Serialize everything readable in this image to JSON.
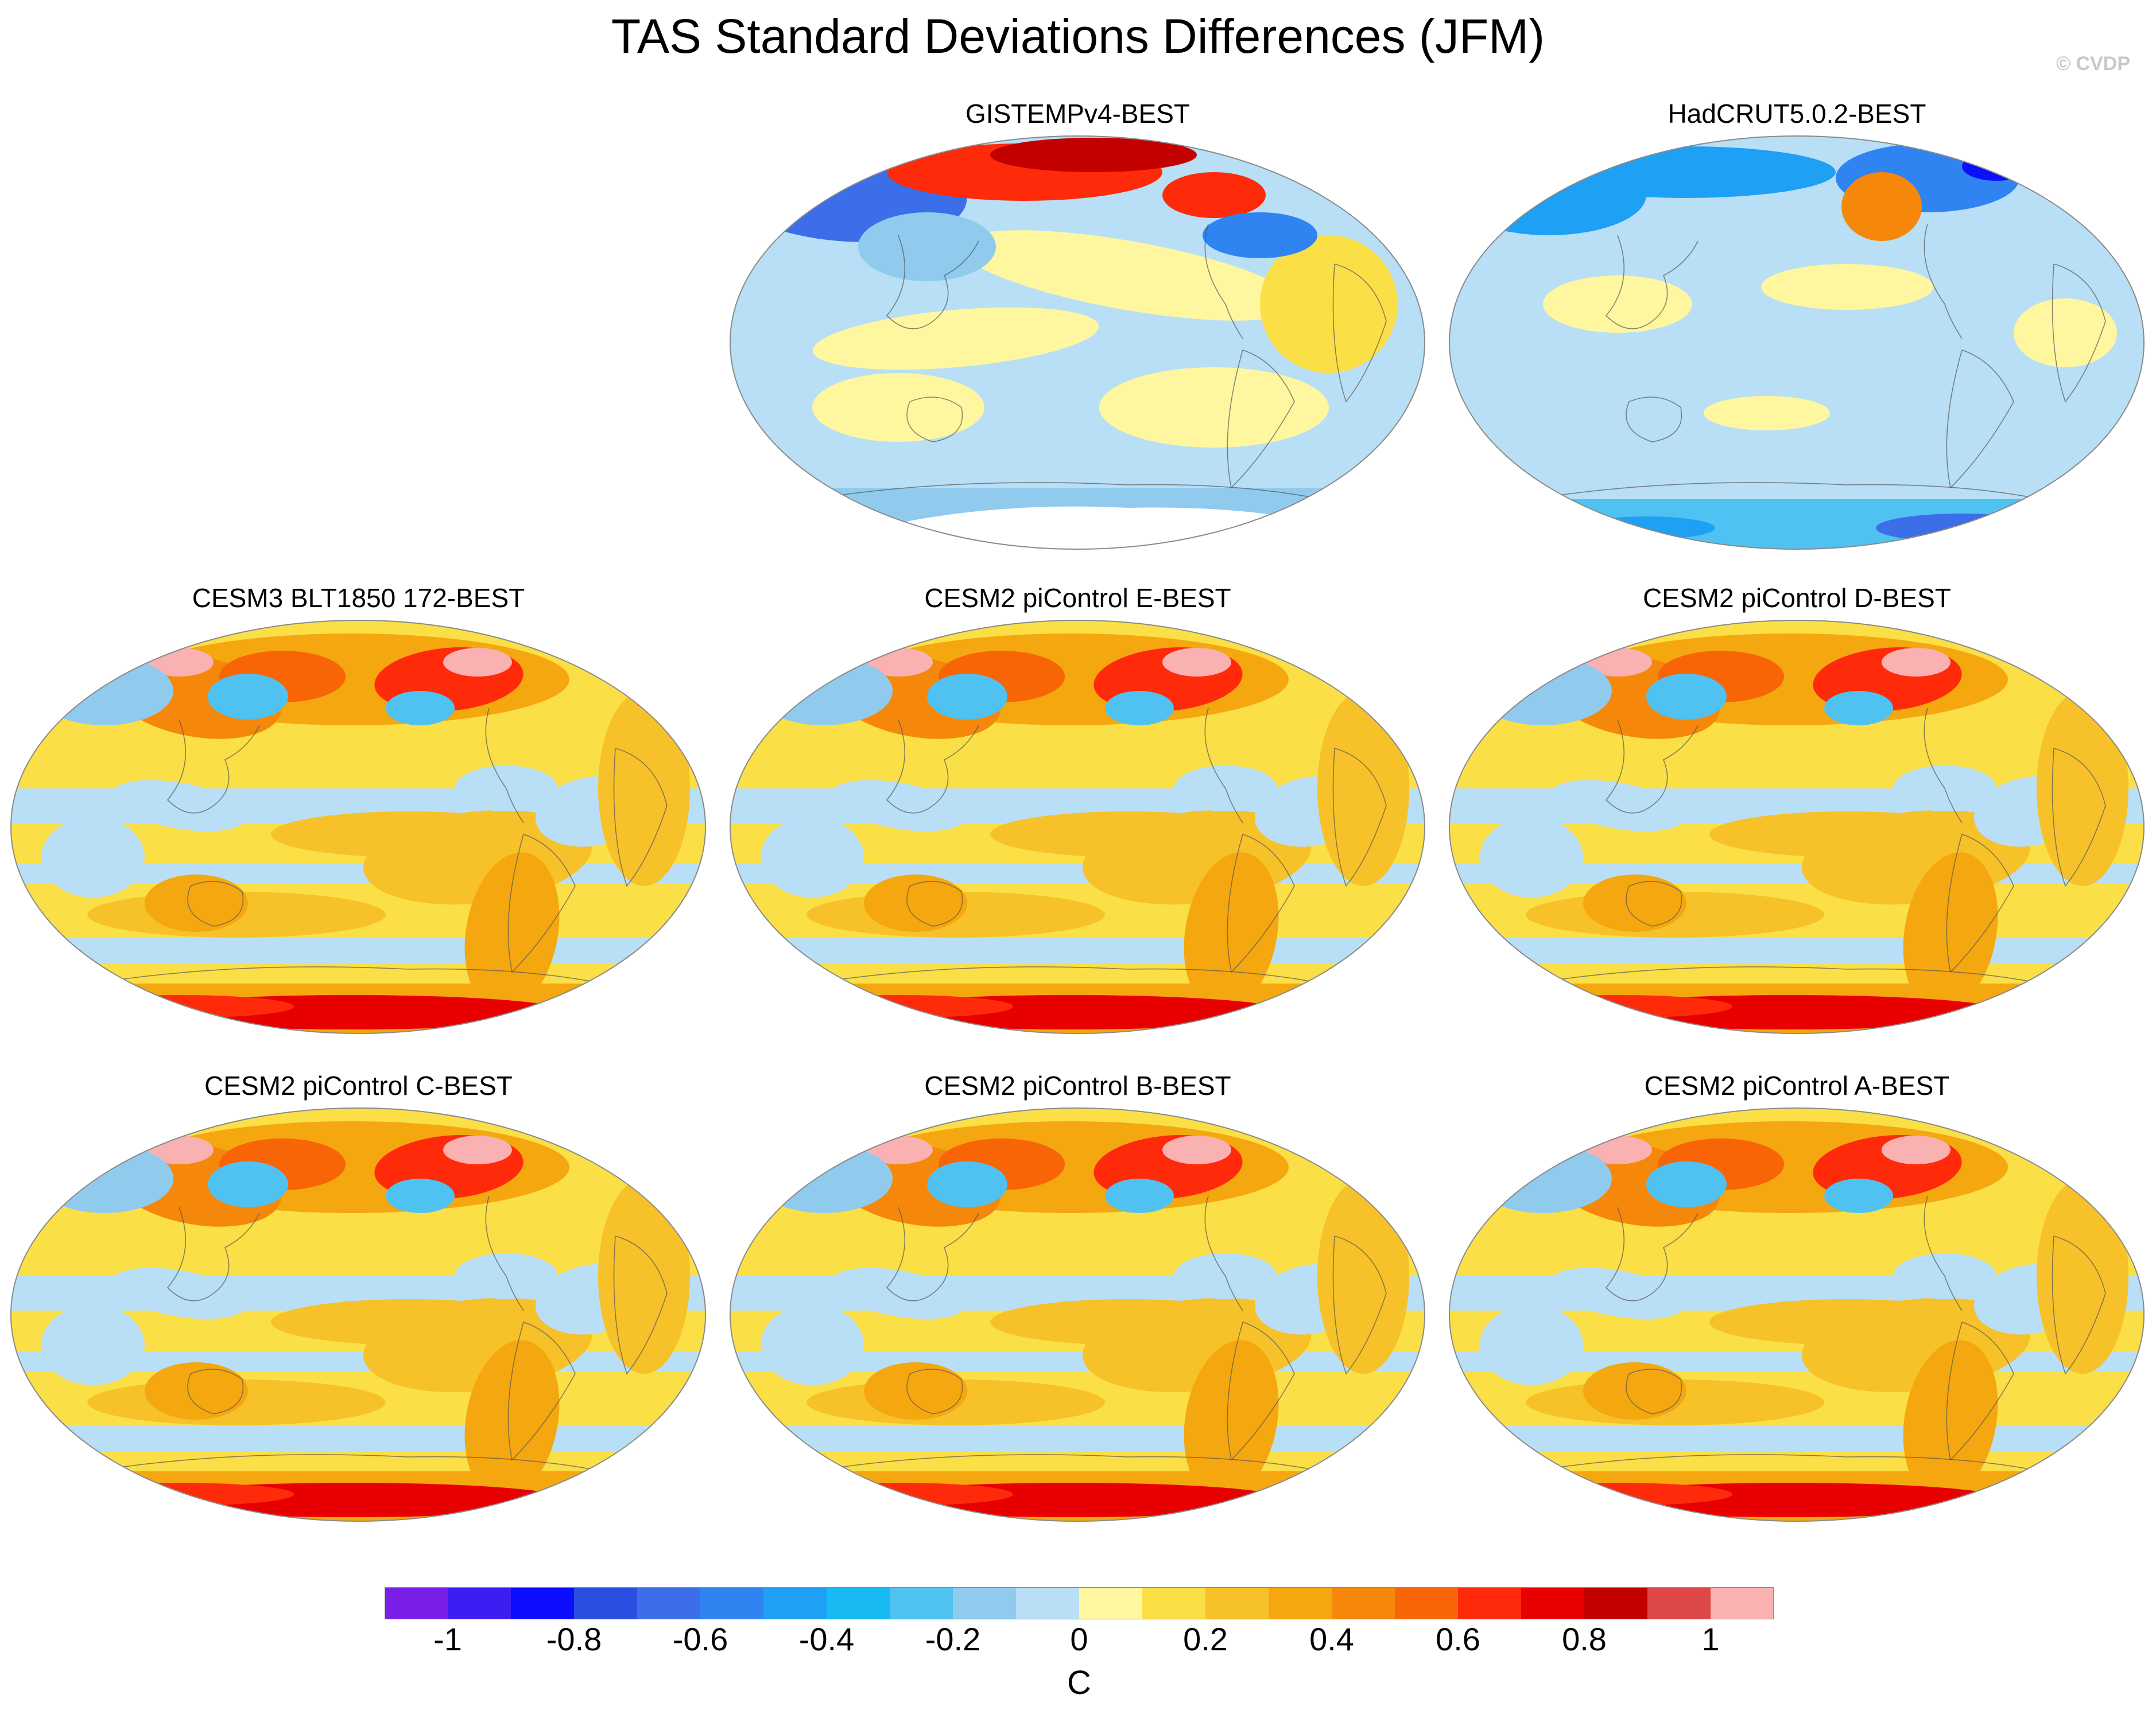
{
  "title": "TAS Standard Deviations Differences (JFM)",
  "credit": "© CVDP",
  "panels": [
    {
      "title": "GISTEMPv4-BEST",
      "pattern": "obs_gistemp"
    },
    {
      "title": "HadCRUT5.0.2-BEST",
      "pattern": "obs_hadcrut"
    },
    {
      "title": "CESM3 BLT1850 172-BEST",
      "pattern": "model"
    },
    {
      "title": "CESM2 piControl E-BEST",
      "pattern": "model"
    },
    {
      "title": "CESM2 piControl D-BEST",
      "pattern": "model"
    },
    {
      "title": "CESM2 piControl C-BEST",
      "pattern": "model"
    },
    {
      "title": "CESM2 piControl B-BEST",
      "pattern": "model"
    },
    {
      "title": "CESM2 piControl A-BEST",
      "pattern": "model"
    }
  ],
  "colorbar": {
    "colors": [
      "#7a1fe8",
      "#3d1ef2",
      "#0d0dff",
      "#2a4fe0",
      "#3b6ee8",
      "#2f84f2",
      "#1ea0f5",
      "#17baf2",
      "#4fc2f2",
      "#90cbee",
      "#b8dff5",
      "#fff7a0",
      "#fbdf47",
      "#f7c12a",
      "#f5a70f",
      "#f5870a",
      "#f76507",
      "#ff2a0a",
      "#e80000",
      "#c20000",
      "#de4848",
      "#f9b1b1"
    ],
    "tick_labels": [
      "-1",
      "-0.8",
      "-0.6",
      "-0.4",
      "-0.2",
      "0",
      "0.2",
      "0.4",
      "0.6",
      "0.8",
      "1"
    ],
    "unit": "C"
  }
}
